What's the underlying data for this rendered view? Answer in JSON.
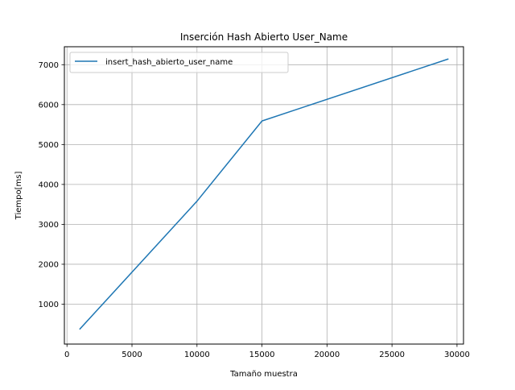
{
  "chart_data": {
    "type": "line",
    "title": "Inserción Hash Abierto User_Name",
    "xlabel": "Tamaño muestra",
    "ylabel": "Tiempo[ms]",
    "xlim": [
      -200,
      30500
    ],
    "ylim": [
      0,
      7450
    ],
    "xticks": [
      0,
      5000,
      10000,
      15000,
      20000,
      25000,
      30000
    ],
    "yticks": [
      1000,
      2000,
      3000,
      4000,
      5000,
      6000,
      7000
    ],
    "grid": true,
    "legend": {
      "position": "upper-left"
    },
    "series": [
      {
        "name": "insert_hash_abierto_user_name",
        "color": "#1f77b4",
        "x": [
          1000,
          10000,
          15000,
          29300
        ],
        "y": [
          380,
          3580,
          5590,
          7140
        ]
      }
    ]
  }
}
